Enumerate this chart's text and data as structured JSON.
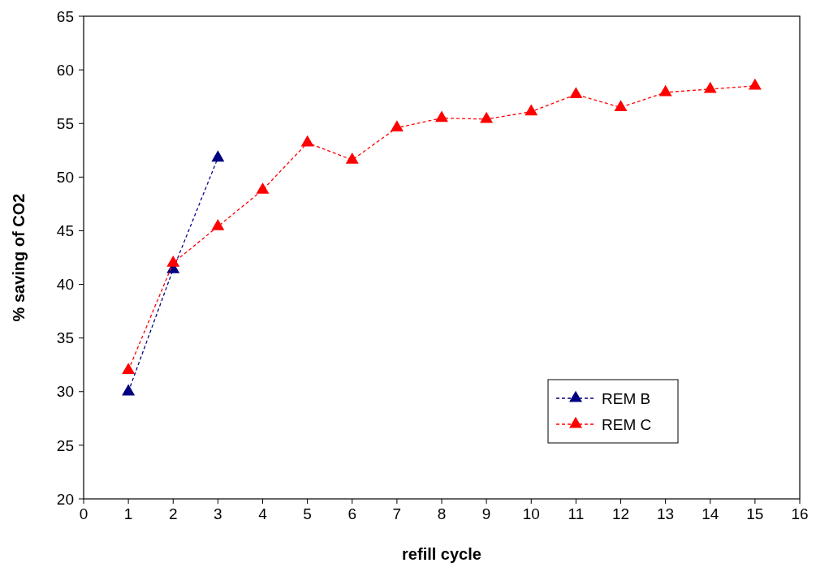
{
  "chart_data": {
    "type": "line",
    "xlabel": "refill cycle",
    "ylabel": "% saving of CO2",
    "xlim": [
      0,
      16
    ],
    "xticks": [
      0,
      1,
      2,
      3,
      4,
      5,
      6,
      7,
      8,
      9,
      10,
      11,
      12,
      13,
      14,
      15,
      16
    ],
    "ylim": [
      20,
      65
    ],
    "yticks": [
      20,
      25,
      30,
      35,
      40,
      45,
      50,
      55,
      60,
      65
    ],
    "marker": "triangle",
    "line_style": "dashed",
    "legend": "bottom right",
    "grid": false,
    "series": [
      {
        "name": "REM B",
        "color": "#000080",
        "x": [
          1,
          2,
          3
        ],
        "values": [
          30,
          41.4,
          51.8
        ]
      },
      {
        "name": "REM C",
        "color": "#ff0000",
        "x": [
          1,
          2,
          3,
          4,
          5,
          6,
          7,
          8,
          9,
          10,
          11,
          12,
          13,
          14,
          15
        ],
        "values": [
          32,
          42,
          45.4,
          48.8,
          53.2,
          51.6,
          54.6,
          55.5,
          55.4,
          56.1,
          57.7,
          56.5,
          57.9,
          58.2,
          58.5
        ]
      }
    ]
  }
}
